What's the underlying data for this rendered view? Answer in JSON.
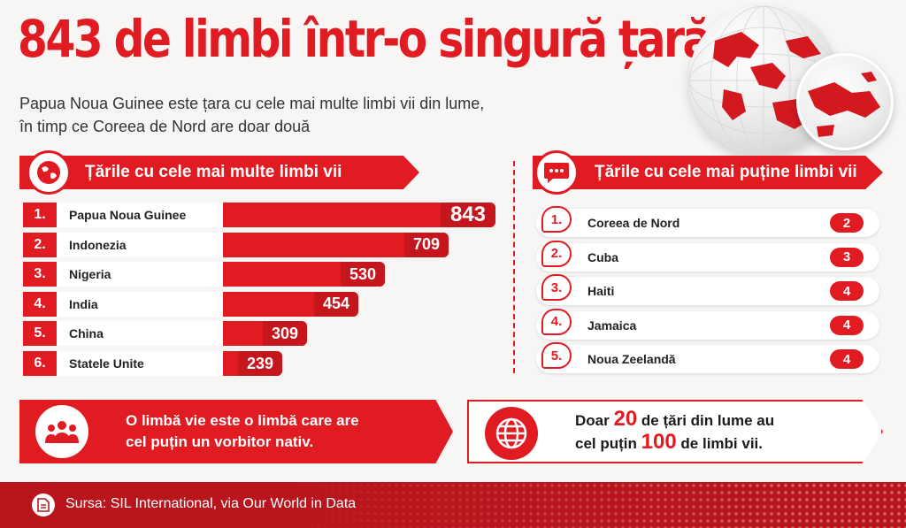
{
  "header": {
    "title": "843 de limbi într-o singură țară",
    "subtitle_line1": "Papua Noua Guinee este țara cu cele mai multe limbi vii din lume,",
    "subtitle_line2": "în timp ce Coreea de Nord are doar două"
  },
  "most_section": {
    "heading": "Țările cu cele mai multe limbi vii",
    "icon": "globe-icon"
  },
  "fewest_section": {
    "heading": "Țările cu cele mai puține limbi vii",
    "icon": "speech-bubble-icon"
  },
  "chart_data": [
    {
      "type": "bar",
      "categories": [
        "Papua Noua Guinee",
        "Indonezia",
        "Nigeria",
        "India",
        "China",
        "Statele Unite"
      ],
      "ranks": [
        "1.",
        "2.",
        "3.",
        "4.",
        "5.",
        "6."
      ],
      "values": [
        843,
        709,
        530,
        454,
        309,
        239
      ],
      "title": "Țările cu cele mai multe limbi vii",
      "orientation": "horizontal"
    },
    {
      "type": "table",
      "categories": [
        "Coreea de Nord",
        "Cuba",
        "Haiti",
        "Jamaica",
        "Noua Zeelandă"
      ],
      "ranks": [
        "1.",
        "2.",
        "3.",
        "4.",
        "5."
      ],
      "values": [
        2,
        3,
        4,
        4,
        4
      ],
      "title": "Țările cu cele mai puține limbi vii"
    }
  ],
  "callout_left": {
    "line1": "O limbă vie este o limbă care are",
    "line2": "cel puțin un vorbitor nativ.",
    "icon": "people-group-icon"
  },
  "callout_right": {
    "prefix": "Doar",
    "num1": "20",
    "mid": "de țări din lume au",
    "line2_prefix": "cel puțin",
    "num2": "100",
    "suffix": "de limbi vii.",
    "icon": "globe-grid-icon"
  },
  "footer": {
    "source": "Sursa: SIL International, via Our World in Data",
    "icon": "document-icon"
  },
  "colors": {
    "accent": "#e01b22",
    "accent_dark": "#c4161c",
    "footer": "#b8161c",
    "background": "#f7f6f4"
  }
}
